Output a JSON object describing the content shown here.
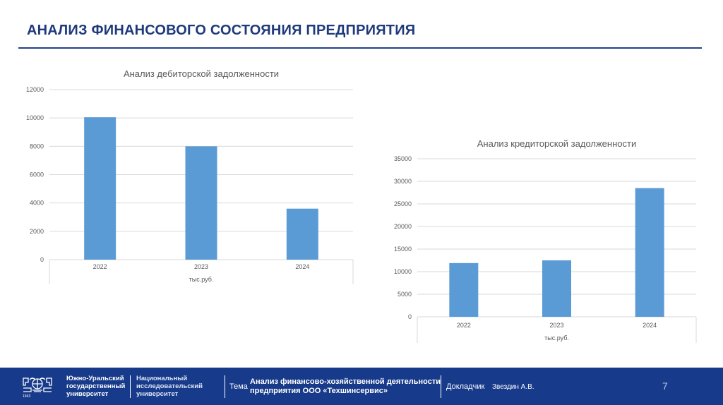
{
  "page": {
    "title": "АНАЛИЗ ФИНАНСОВОГО СОСТОЯНИЯ ПРЕДПРИЯТИЯ"
  },
  "chart_data": [
    {
      "type": "bar",
      "title": "Анализ дебиторской задолженности",
      "categories": [
        "2022",
        "2023",
        "2024"
      ],
      "values": [
        10050,
        8000,
        3600
      ],
      "xlabel": "тыс.руб.",
      "ylabel": "",
      "ylim": [
        0,
        12000
      ],
      "yticks": [
        "0",
        "2000",
        "4000",
        "6000",
        "8000",
        "10000",
        "12000"
      ],
      "grid": true,
      "color": "#5b9bd5"
    },
    {
      "type": "bar",
      "title": "Анализ кредиторской задолженности",
      "categories": [
        "2022",
        "2023",
        "2024"
      ],
      "values": [
        11900,
        12500,
        28500
      ],
      "xlabel": "тыс.руб.",
      "ylabel": "",
      "ylim": [
        0,
        35000
      ],
      "yticks": [
        "0",
        "5000",
        "10000",
        "15000",
        "20000",
        "25000",
        "30000",
        "35000"
      ],
      "grid": true,
      "color": "#5b9bd5"
    }
  ],
  "footer": {
    "university_col1": [
      "Южно-Уральский",
      "государственный",
      "университет"
    ],
    "university_col2": [
      "Национальный",
      "исследовательский",
      "университет"
    ],
    "logo_year": "1943",
    "topic_label": "Тема",
    "topic_lines": [
      "Анализ финансово-хозяйственной деятельности",
      "предприятия ООО «Техшинсервис»"
    ],
    "speaker_label": "Докладчик",
    "speaker_name": "Звездин А.В.",
    "page_number": "7"
  },
  "colors": {
    "accent": "#1e3a7b",
    "footer": "#173a8a",
    "bar": "#5b9bd5"
  }
}
